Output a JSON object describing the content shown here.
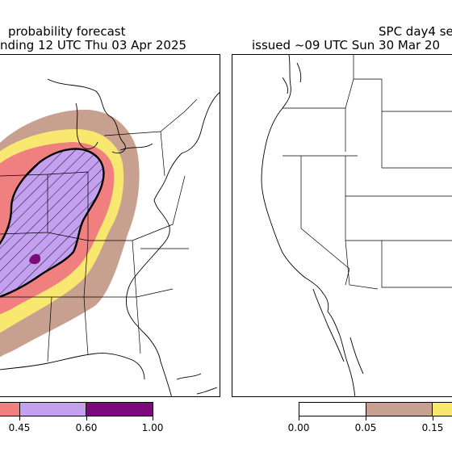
{
  "left_panel": {
    "title_line1": "probability forecast",
    "title_line2": "nding 12 UTC Thu 03 Apr 2025"
  },
  "right_panel": {
    "title_line1": "SPC day4 se",
    "title_line2": "issued ~09 UTC Sun 30 Mar 20"
  },
  "left_colorbar": {
    "ticks": [
      "0.45",
      "0.60",
      "1.00"
    ],
    "colors": [
      "#f08080",
      "#c4a0f0",
      "#7b0a7b"
    ]
  },
  "right_colorbar": {
    "ticks": [
      "0.00",
      "0.05",
      "0.15"
    ],
    "colors": [
      "#ffffff",
      "#c8a090",
      "#f8e870"
    ]
  },
  "colors": {
    "prob_05": "#c8a090",
    "prob_15": "#f8e870",
    "prob_30": "#f08080",
    "prob_45": "#c4a0f0",
    "prob_60": "#7b0a7b"
  }
}
